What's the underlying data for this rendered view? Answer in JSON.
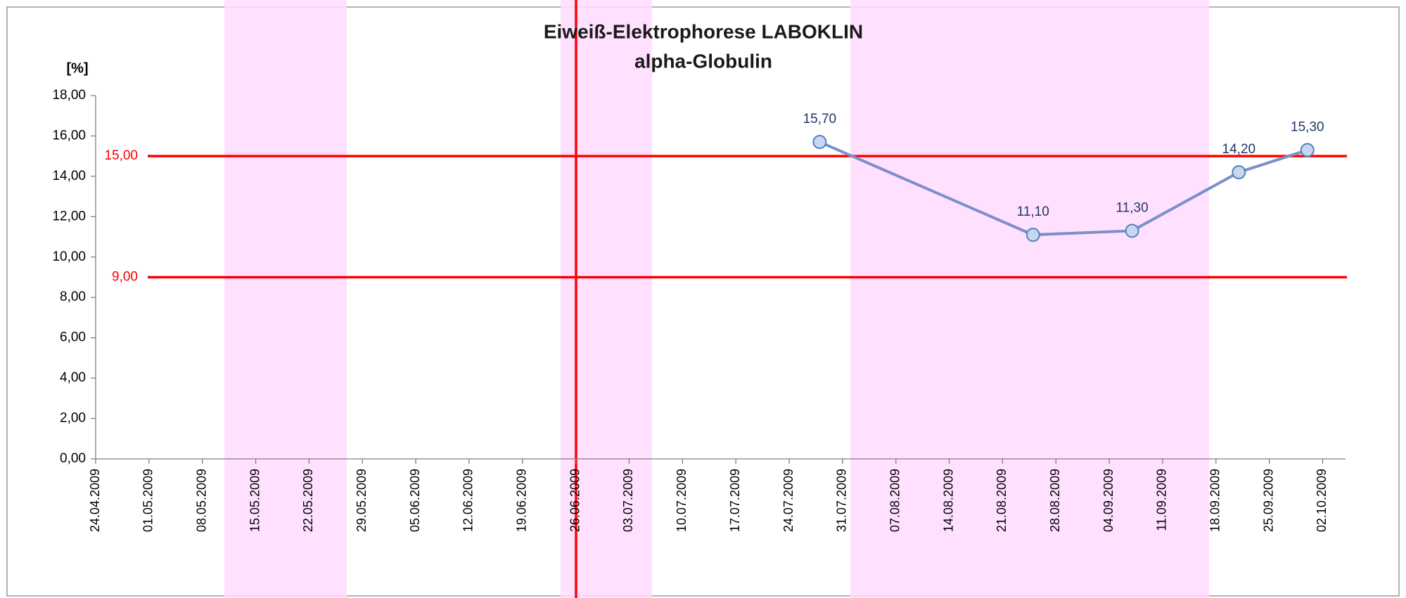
{
  "chart_data": {
    "type": "line",
    "title": "Eiweiß-Elektrophorese LABOKLIN",
    "subtitle": "alpha-Globulin",
    "y_label": "[%]",
    "x": [
      "28.07.2009",
      "25.08.2009",
      "07.09.2009",
      "21.09.2009",
      "30.09.2009"
    ],
    "series": [
      {
        "name": "alpha-Globulin",
        "color": "#7b8fc8",
        "values": [
          15.7,
          11.1,
          11.3,
          14.2,
          15.3
        ],
        "value_labels": [
          "15,70",
          "11,10",
          "11,30",
          "14,20",
          "15,30"
        ]
      }
    ],
    "xlim": [
      "24.04.2009",
      "05.10.2009"
    ],
    "xticks": [
      "24.04.2009",
      "01.05.2009",
      "08.05.2009",
      "15.05.2009",
      "22.05.2009",
      "29.05.2009",
      "05.06.2009",
      "12.06.2009",
      "19.06.2009",
      "26.06.2009",
      "03.07.2009",
      "10.07.2009",
      "17.07.2009",
      "24.07.2009",
      "31.07.2009",
      "07.08.2009",
      "14.08.2009",
      "21.08.2009",
      "28.08.2009",
      "04.09.2009",
      "11.09.2009",
      "18.09.2009",
      "25.09.2009",
      "02.10.2009"
    ],
    "ylim": [
      0,
      18
    ],
    "yticks": [
      {
        "value": 0,
        "label": "0,00"
      },
      {
        "value": 2,
        "label": "2,00"
      },
      {
        "value": 4,
        "label": "4,00"
      },
      {
        "value": 6,
        "label": "6,00"
      },
      {
        "value": 8,
        "label": "8,00"
      },
      {
        "value": 10,
        "label": "10,00"
      },
      {
        "value": 12,
        "label": "12,00"
      },
      {
        "value": 14,
        "label": "14,00"
      },
      {
        "value": 16,
        "label": "16,00"
      },
      {
        "value": 18,
        "label": "18,00"
      }
    ],
    "reference_lines": [
      {
        "value": 15,
        "label": "15,00",
        "color": "#ff0000"
      },
      {
        "value": 9,
        "label": "9,00",
        "color": "#ff0000"
      }
    ],
    "grid": false
  }
}
